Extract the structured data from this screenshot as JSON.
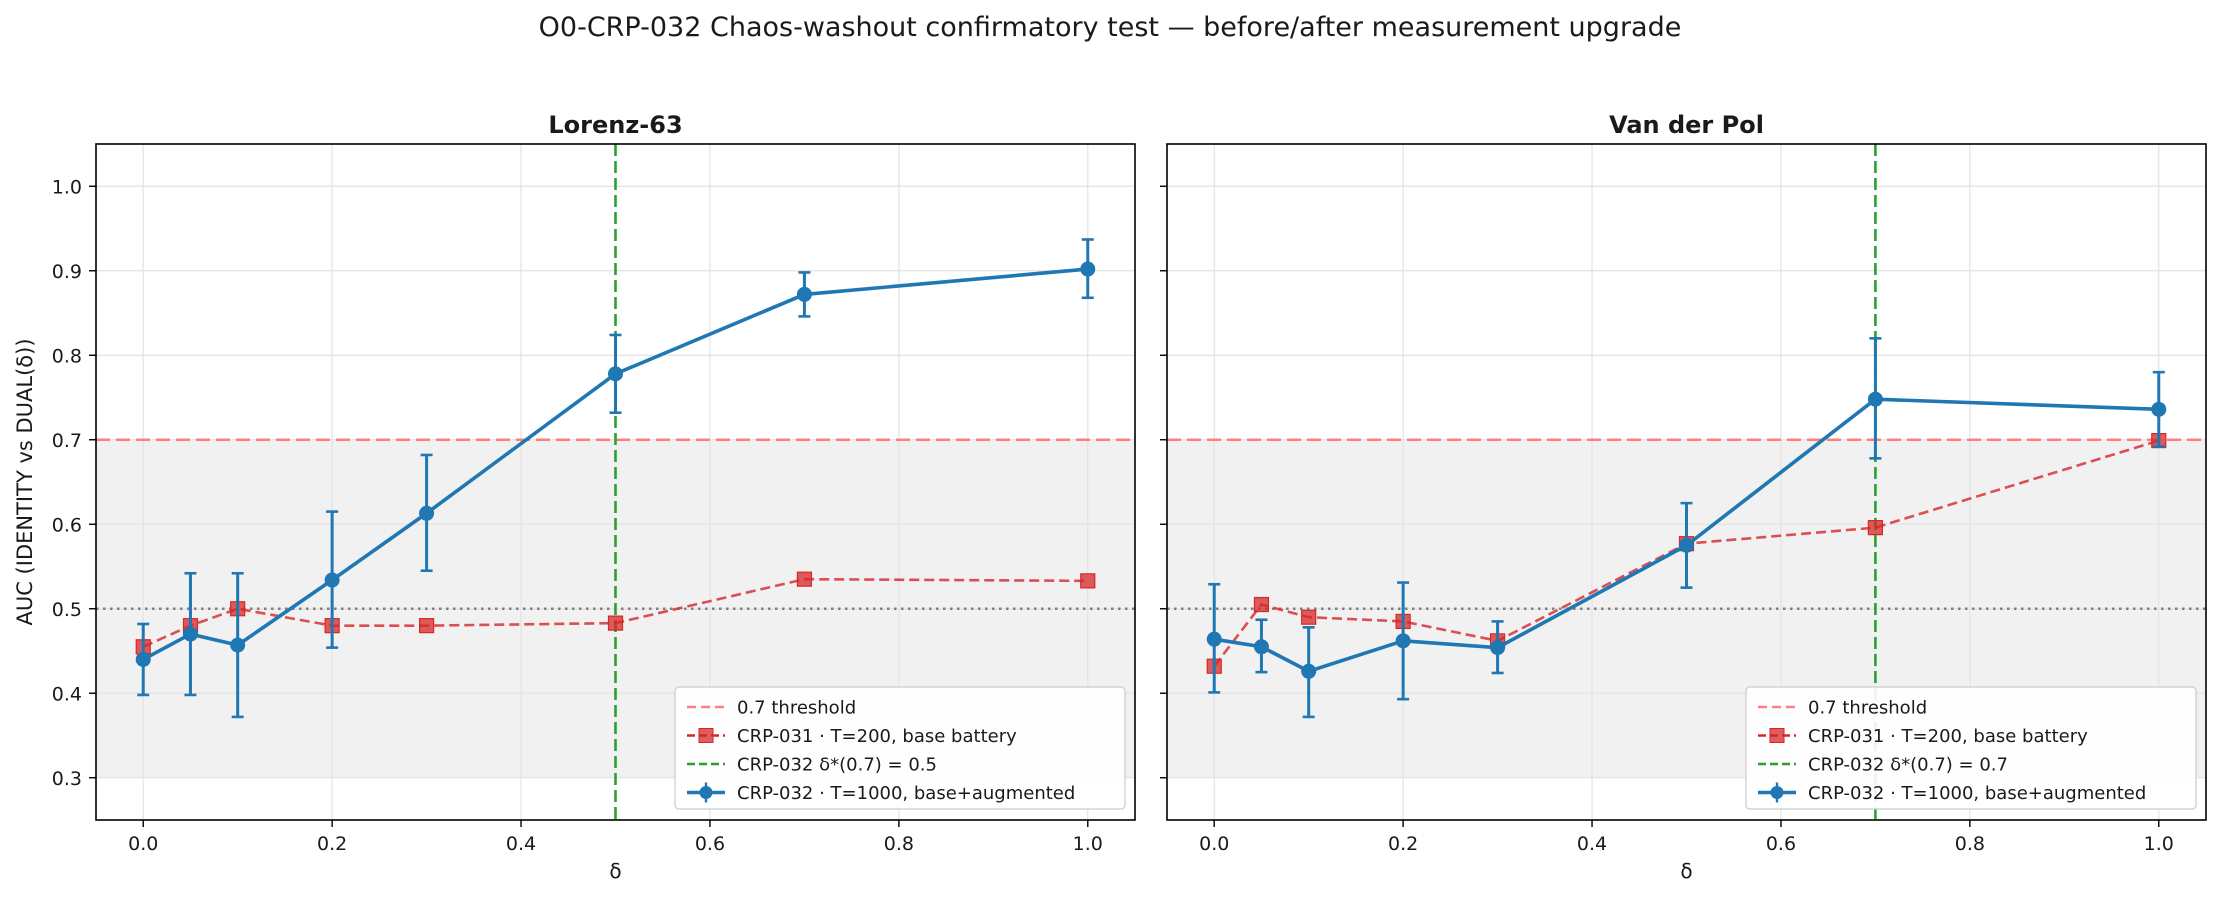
{
  "suptitle": "O0-CRP-032  Chaos-washout confirmatory test — before/after measurement upgrade",
  "ylabel": "AUC (IDENTITY vs DUAL(δ))",
  "colors": {
    "blue": "#1f77b4",
    "red": "#d62728",
    "green": "#2ca02c",
    "threshold": "#ff7f7f",
    "gray_band": "#f1f1f1",
    "dotted": "#808080",
    "grid": "#e3e3e3"
  },
  "chart_data": [
    {
      "type": "line",
      "title": "Lorenz-63",
      "xlabel": "δ",
      "xlim": [
        -0.05,
        1.05
      ],
      "ylim": [
        0.25,
        1.05
      ],
      "xticks": [
        0.0,
        0.2,
        0.4,
        0.6,
        0.8,
        1.0
      ],
      "xtick_labels": [
        "0.0",
        "0.2",
        "0.4",
        "0.6",
        "0.8",
        "1.0"
      ],
      "yticks": [
        0.3,
        0.4,
        0.5,
        0.6,
        0.7,
        0.8,
        0.9,
        1.0
      ],
      "ytick_labels": [
        "0.3",
        "0.4",
        "0.5",
        "0.6",
        "0.7",
        "0.8",
        "0.9",
        "1.0"
      ],
      "grid": true,
      "shaded_band": [
        0.3,
        0.7
      ],
      "threshold": 0.7,
      "chance_line": 0.5,
      "vline": 0.5,
      "legend_position": "lower-right",
      "legend": [
        {
          "key": "threshold",
          "label": "0.7 threshold"
        },
        {
          "key": "crp031",
          "label": "CRP-031 · T=200, base battery"
        },
        {
          "key": "vline",
          "label": "CRP-032 δ*(0.7) = 0.5"
        },
        {
          "key": "crp032",
          "label": "CRP-032 · T=1000, base+augmented"
        }
      ],
      "series": [
        {
          "key": "crp031",
          "name": "CRP-031 · T=200, base battery",
          "x": [
            0.0,
            0.05,
            0.1,
            0.2,
            0.3,
            0.5,
            0.7,
            1.0
          ],
          "y": [
            0.455,
            0.48,
            0.5,
            0.48,
            0.48,
            0.483,
            0.535,
            0.533
          ]
        },
        {
          "key": "crp032",
          "name": "CRP-032 · T=1000, base+augmented",
          "x": [
            0.0,
            0.05,
            0.1,
            0.2,
            0.3,
            0.5,
            0.7,
            1.0
          ],
          "y": [
            0.44,
            0.47,
            0.457,
            0.534,
            0.613,
            0.778,
            0.872,
            0.902
          ],
          "err_low": [
            0.398,
            0.398,
            0.372,
            0.454,
            0.545,
            0.732,
            0.846,
            0.868
          ],
          "err_high": [
            0.482,
            0.542,
            0.542,
            0.615,
            0.682,
            0.824,
            0.898,
            0.937
          ]
        }
      ]
    },
    {
      "type": "line",
      "title": "Van der Pol",
      "xlabel": "δ",
      "xlim": [
        -0.05,
        1.05
      ],
      "ylim": [
        0.25,
        1.05
      ],
      "xticks": [
        0.0,
        0.2,
        0.4,
        0.6,
        0.8,
        1.0
      ],
      "xtick_labels": [
        "0.0",
        "0.2",
        "0.4",
        "0.6",
        "0.8",
        "1.0"
      ],
      "yticks": [
        0.3,
        0.4,
        0.5,
        0.6,
        0.7,
        0.8,
        0.9,
        1.0
      ],
      "ytick_labels": [],
      "grid": true,
      "shaded_band": [
        0.3,
        0.7
      ],
      "threshold": 0.7,
      "chance_line": 0.5,
      "vline": 0.7,
      "legend_position": "lower-right",
      "legend": [
        {
          "key": "threshold",
          "label": "0.7 threshold"
        },
        {
          "key": "crp031",
          "label": "CRP-031 · T=200, base battery"
        },
        {
          "key": "vline",
          "label": "CRP-032 δ*(0.7) = 0.7"
        },
        {
          "key": "crp032",
          "label": "CRP-032 · T=1000, base+augmented"
        }
      ],
      "series": [
        {
          "key": "crp031",
          "name": "CRP-031 · T=200, base battery",
          "x": [
            0.0,
            0.05,
            0.1,
            0.2,
            0.3,
            0.5,
            0.7,
            1.0
          ],
          "y": [
            0.432,
            0.505,
            0.49,
            0.485,
            0.462,
            0.577,
            0.596,
            0.699
          ]
        },
        {
          "key": "crp032",
          "name": "CRP-032 · T=1000, base+augmented",
          "x": [
            0.0,
            0.05,
            0.1,
            0.2,
            0.3,
            0.5,
            0.7,
            1.0
          ],
          "y": [
            0.464,
            0.455,
            0.426,
            0.462,
            0.454,
            0.575,
            0.748,
            0.736
          ],
          "err_low": [
            0.401,
            0.425,
            0.372,
            0.393,
            0.424,
            0.525,
            0.678,
            0.692
          ],
          "err_high": [
            0.529,
            0.487,
            0.478,
            0.531,
            0.485,
            0.625,
            0.82,
            0.78
          ]
        }
      ]
    }
  ]
}
